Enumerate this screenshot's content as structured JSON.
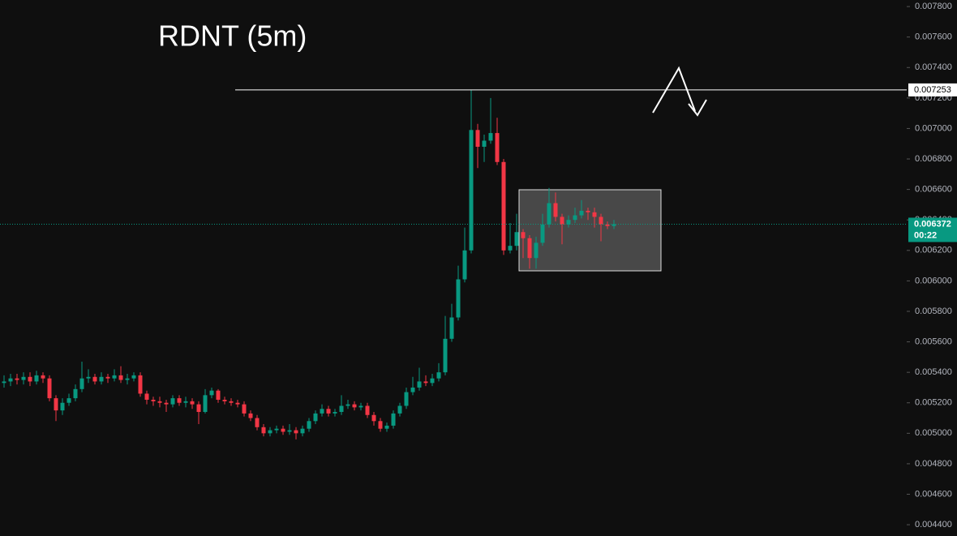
{
  "chart_data": {
    "type": "candlestick",
    "title": "RDNT (5m)",
    "up_color": "#089981",
    "down_color": "#f23645",
    "open": [
      0.00533,
      0.00534,
      0.00536,
      0.00535,
      0.00537,
      0.00534,
      0.00538,
      0.00536,
      0.00523,
      0.00515,
      0.0052,
      0.00523,
      0.00529,
      0.00536,
      0.00537,
      0.00534,
      0.00537,
      0.00536,
      0.00538,
      0.00535,
      0.00536,
      0.00538,
      0.00526,
      0.00522,
      0.00521,
      0.0052,
      0.00519,
      0.00523,
      0.0052,
      0.00521,
      0.00519,
      0.00514,
      0.00525,
      0.00528,
      0.00522,
      0.00521,
      0.0052,
      0.00519,
      0.00513,
      0.0051,
      0.00504,
      0.005,
      0.00502,
      0.00503,
      0.00501,
      0.00502,
      0.005,
      0.00503,
      0.00508,
      0.00513,
      0.00516,
      0.00513,
      0.00514,
      0.00518,
      0.00519,
      0.00517,
      0.00518,
      0.00512,
      0.00508,
      0.00503,
      0.00505,
      0.00513,
      0.00518,
      0.00527,
      0.0053,
      0.00534,
      0.00533,
      0.00536,
      0.0054,
      0.00562,
      0.00576,
      0.00601,
      0.0062,
      0.00699,
      0.00688,
      0.00692,
      0.00697,
      0.00678,
      0.0062,
      0.00623,
      0.00632,
      0.00628,
      0.00615,
      0.00625,
      0.00637,
      0.00651,
      0.00642,
      0.00637,
      0.0064,
      0.00643,
      0.00646,
      0.00645,
      0.00642,
      0.00637,
      0.00636
    ],
    "high": [
      0.00538,
      0.00539,
      0.00539,
      0.0054,
      0.0054,
      0.00541,
      0.0054,
      0.00538,
      0.00525,
      0.00523,
      0.00526,
      0.00532,
      0.00547,
      0.00542,
      0.00539,
      0.0054,
      0.00539,
      0.00542,
      0.00544,
      0.00539,
      0.0054,
      0.0054,
      0.00528,
      0.00524,
      0.00524,
      0.00522,
      0.00525,
      0.00525,
      0.00524,
      0.00523,
      0.00521,
      0.00529,
      0.0053,
      0.00529,
      0.00524,
      0.00523,
      0.00522,
      0.00521,
      0.00515,
      0.00512,
      0.00506,
      0.00504,
      0.00505,
      0.00505,
      0.00506,
      0.00504,
      0.00505,
      0.0051,
      0.00515,
      0.00519,
      0.00518,
      0.00516,
      0.00525,
      0.00522,
      0.00521,
      0.0052,
      0.0052,
      0.00514,
      0.0051,
      0.00507,
      0.00515,
      0.0052,
      0.0053,
      0.00537,
      0.00543,
      0.00538,
      0.00539,
      0.00546,
      0.00577,
      0.00585,
      0.0061,
      0.00635,
      0.007253,
      0.00703,
      0.00696,
      0.0072,
      0.00707,
      0.0068,
      0.00638,
      0.00644,
      0.00634,
      0.0063,
      0.00629,
      0.00644,
      0.00661,
      0.00658,
      0.00644,
      0.00643,
      0.00648,
      0.00653,
      0.00648,
      0.00648,
      0.00644,
      0.00639,
      0.0064
    ],
    "low": [
      0.0053,
      0.00531,
      0.00532,
      0.00532,
      0.00531,
      0.00532,
      0.00533,
      0.00521,
      0.00508,
      0.00512,
      0.00518,
      0.00521,
      0.00527,
      0.00533,
      0.00532,
      0.00532,
      0.00533,
      0.00534,
      0.00533,
      0.00532,
      0.00534,
      0.00524,
      0.00519,
      0.00518,
      0.00517,
      0.00514,
      0.00517,
      0.00518,
      0.00517,
      0.00516,
      0.00506,
      0.00513,
      0.00523,
      0.0052,
      0.00519,
      0.00518,
      0.00517,
      0.00511,
      0.00508,
      0.00502,
      0.00498,
      0.00498,
      0.005,
      0.00499,
      0.00499,
      0.00496,
      0.00498,
      0.00501,
      0.00506,
      0.00511,
      0.00511,
      0.00511,
      0.00512,
      0.00516,
      0.00515,
      0.00515,
      0.0051,
      0.00505,
      0.00501,
      0.00501,
      0.00503,
      0.00511,
      0.00516,
      0.00525,
      0.00528,
      0.00531,
      0.00531,
      0.00534,
      0.00538,
      0.0056,
      0.00574,
      0.00599,
      0.00618,
      0.00674,
      0.00678,
      0.0069,
      0.00676,
      0.00617,
      0.00618,
      0.0062,
      0.00615,
      0.00608,
      0.00608,
      0.00623,
      0.00635,
      0.00639,
      0.00624,
      0.00635,
      0.00638,
      0.00641,
      0.0064,
      0.00635,
      0.00626,
      0.00634,
      0.00634
    ],
    "close": [
      0.00534,
      0.00536,
      0.00535,
      0.00537,
      0.00534,
      0.00538,
      0.00536,
      0.00523,
      0.00515,
      0.0052,
      0.00523,
      0.00529,
      0.00536,
      0.00537,
      0.00534,
      0.00537,
      0.00536,
      0.00538,
      0.00535,
      0.00536,
      0.00538,
      0.00526,
      0.00522,
      0.00521,
      0.0052,
      0.00519,
      0.00523,
      0.0052,
      0.00521,
      0.00519,
      0.00514,
      0.00525,
      0.00528,
      0.00522,
      0.00521,
      0.0052,
      0.00519,
      0.00513,
      0.0051,
      0.00504,
      0.005,
      0.00502,
      0.00503,
      0.00501,
      0.00502,
      0.005,
      0.00503,
      0.00508,
      0.00513,
      0.00516,
      0.00513,
      0.00514,
      0.00518,
      0.00519,
      0.00517,
      0.00518,
      0.00512,
      0.00508,
      0.00503,
      0.00505,
      0.00513,
      0.00518,
      0.00527,
      0.0053,
      0.00534,
      0.00533,
      0.00536,
      0.0054,
      0.00562,
      0.00576,
      0.00601,
      0.0062,
      0.00699,
      0.00688,
      0.00692,
      0.00697,
      0.00678,
      0.0062,
      0.00623,
      0.00632,
      0.00628,
      0.00615,
      0.00625,
      0.00637,
      0.00651,
      0.00642,
      0.00637,
      0.0064,
      0.00643,
      0.00646,
      0.00645,
      0.00642,
      0.00637,
      0.00636,
      0.006372
    ],
    "ylim": [
      0.004326,
      0.007843
    ],
    "yticks": [
      {
        "value": 0.0044,
        "label": "0.004400"
      },
      {
        "value": 0.0046,
        "label": "0.004600"
      },
      {
        "value": 0.0048,
        "label": "0.004800"
      },
      {
        "value": 0.005,
        "label": "0.005000"
      },
      {
        "value": 0.0052,
        "label": "0.005200"
      },
      {
        "value": 0.0054,
        "label": "0.005400"
      },
      {
        "value": 0.0056,
        "label": "0.005600"
      },
      {
        "value": 0.0058,
        "label": "0.005800"
      },
      {
        "value": 0.006,
        "label": "0.006000"
      },
      {
        "value": 0.0062,
        "label": "0.006200"
      },
      {
        "value": 0.0064,
        "label": "0.006400"
      },
      {
        "value": 0.0066,
        "label": "0.006600"
      },
      {
        "value": 0.0068,
        "label": "0.006800"
      },
      {
        "value": 0.007,
        "label": "0.007000"
      },
      {
        "value": 0.0072,
        "label": "0.007200"
      },
      {
        "value": 0.0074,
        "label": "0.007400"
      },
      {
        "value": 0.0076,
        "label": "0.007600"
      },
      {
        "value": 0.0078,
        "label": "0.007800"
      }
    ],
    "price_line": 0.007253,
    "last_price": 0.006372,
    "countdown": "00:22"
  }
}
